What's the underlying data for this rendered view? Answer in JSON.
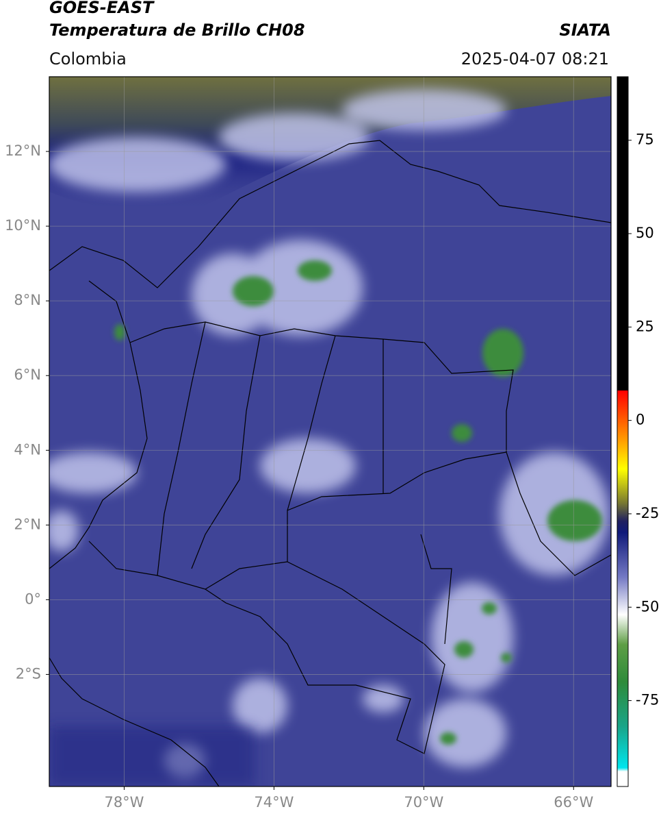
{
  "header": {
    "title": "GOES-EAST",
    "subtitle": "Temperatura de Brillo CH08",
    "brand": "SIATA",
    "region": "Colombia",
    "datetime": "2025-04-07 08:21"
  },
  "map": {
    "xlim": [
      -80,
      -65
    ],
    "ylim": [
      -5,
      14
    ],
    "grid": true,
    "lat_ticks": [
      {
        "value": 12,
        "label": "12°N"
      },
      {
        "value": 10,
        "label": "10°N"
      },
      {
        "value": 8,
        "label": "8°N"
      },
      {
        "value": 6,
        "label": "6°N"
      },
      {
        "value": 4,
        "label": "4°N"
      },
      {
        "value": 2,
        "label": "2°N"
      },
      {
        "value": 0,
        "label": "0°"
      },
      {
        "value": -2,
        "label": "2°S"
      }
    ],
    "lon_ticks": [
      {
        "value": -78,
        "label": "78°W"
      },
      {
        "value": -74,
        "label": "74°W"
      },
      {
        "value": -70,
        "label": "70°W"
      },
      {
        "value": -66,
        "label": "66°W"
      }
    ]
  },
  "colorbar": {
    "lim": [
      -98,
      92
    ],
    "ticks": [
      75,
      50,
      25,
      0,
      -25,
      -50,
      -75
    ],
    "stops": [
      {
        "value": -98,
        "color": "#ffffff"
      },
      {
        "value": -94,
        "color": "#ffffff"
      },
      {
        "value": -93,
        "color": "#00e5ee"
      },
      {
        "value": -82,
        "color": "#1aa589"
      },
      {
        "value": -70,
        "color": "#2e8b3a"
      },
      {
        "value": -60,
        "color": "#5e9e45"
      },
      {
        "value": -52,
        "color": "#ffffff"
      },
      {
        "value": -42,
        "color": "#7479c4"
      },
      {
        "value": -30,
        "color": "#101a7a"
      },
      {
        "value": -27,
        "color": "#202060"
      },
      {
        "value": -22,
        "color": "#7a7a30"
      },
      {
        "value": -13,
        "color": "#ffff00"
      },
      {
        "value": -5,
        "color": "#ff9900"
      },
      {
        "value": 8,
        "color": "#ff0000"
      },
      {
        "value": 8.01,
        "color": "#000000"
      },
      {
        "value": 92,
        "color": "#000000"
      }
    ]
  }
}
